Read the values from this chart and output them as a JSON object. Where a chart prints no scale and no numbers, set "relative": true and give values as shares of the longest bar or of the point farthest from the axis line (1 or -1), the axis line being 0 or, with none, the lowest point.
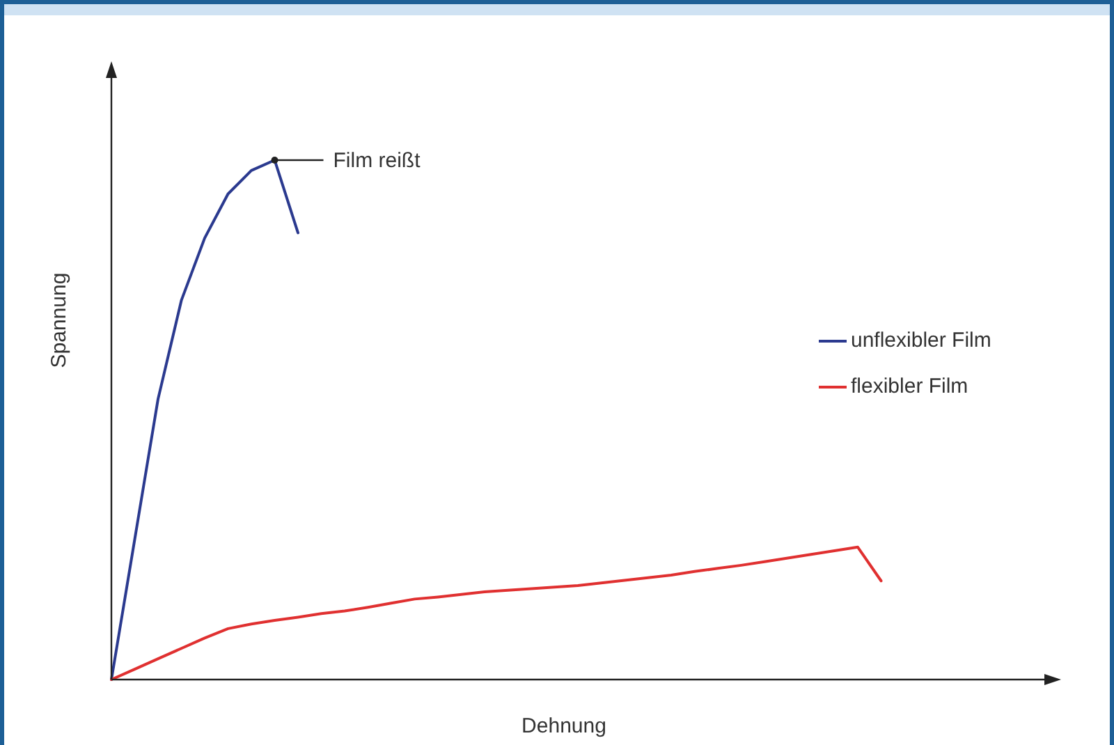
{
  "chart_data": {
    "type": "line",
    "relative": true,
    "xlabel": "Dehnung",
    "ylabel": "Spannung",
    "legend": "right",
    "marker": "none",
    "line_style": "solid",
    "annotations": [
      "Film reißt"
    ],
    "categories": [
      null,
      null,
      null,
      null,
      null,
      null,
      null,
      null,
      null,
      null,
      null,
      null,
      null,
      null,
      null,
      null,
      null,
      null,
      null,
      null,
      null,
      null,
      null,
      null,
      null,
      null,
      null,
      null,
      null,
      null,
      null,
      null,
      null,
      null,
      null,
      null,
      null,
      null,
      null,
      null,
      null
    ],
    "series": [
      {
        "name": "unflexibler Film",
        "color": "#2b3a8f",
        "values": [
          0,
          0.27,
          0.54,
          0.73,
          0.85,
          0.935,
          0.98,
          1.0,
          0.86,
          null,
          null,
          null,
          null,
          null,
          null,
          null,
          null,
          null,
          null,
          null,
          null,
          null,
          null,
          null,
          null,
          null,
          null,
          null,
          null,
          null,
          null,
          null,
          null,
          null,
          null,
          null,
          null,
          null,
          null,
          null,
          null
        ]
      },
      {
        "name": "flexibler Film",
        "color": "#e03030",
        "values": [
          0,
          0.02,
          0.04,
          0.06,
          0.08,
          0.098,
          0.107,
          0.114,
          0.12,
          0.127,
          0.132,
          0.139,
          0.147,
          0.155,
          0.159,
          0.164,
          0.169,
          0.172,
          0.175,
          0.178,
          0.181,
          0.186,
          0.191,
          0.196,
          0.201,
          0.208,
          0.214,
          0.22,
          0.227,
          0.234,
          0.241,
          0.248,
          0.255,
          0.19,
          null,
          null,
          null,
          null,
          null,
          null,
          null
        ]
      }
    ]
  }
}
